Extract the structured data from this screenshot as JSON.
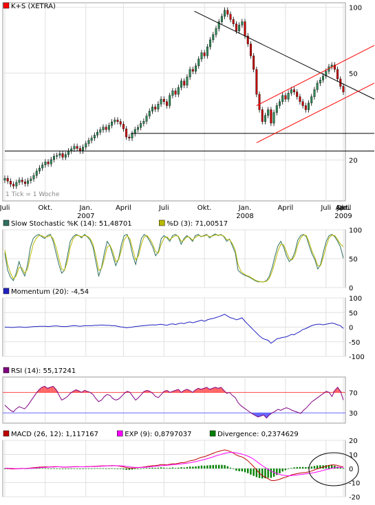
{
  "colors": {
    "background": "#ffffff",
    "panel_border": "#999999",
    "grid": "#e0e0e0",
    "candle_up": "#2e8b57",
    "candle_down": "#cc0000",
    "candle_wick": "#000000",
    "trend_black": "#000000",
    "trend_red": "#ff0000",
    "stoch_k": "#2f6f5f",
    "stoch_d": "#b8b800",
    "momentum": "#2020c0",
    "rsi_line": "#800080",
    "rsi_upper": "#ff4444",
    "rsi_lower": "#6666ff",
    "rsi_fill_over": "#ff6666",
    "rsi_fill_under": "#6666ff",
    "macd_line": "#c00000",
    "exp_line": "#ff00ff",
    "divergence": "#008000"
  },
  "chart_data": [
    {
      "type": "candlestick",
      "legend": {
        "label": "K+S (XETRA)",
        "color": "#ff0000"
      },
      "note": "1 Tick = 1 Woche",
      "y_scale": "log",
      "y_ticks": [
        20,
        50,
        100
      ],
      "ylim": [
        13,
        105
      ],
      "x_ticks": [
        "Juli",
        "Okt.",
        "Jan.",
        "April",
        "Juli",
        "Okt.",
        "Jan.",
        "April",
        "Juli",
        "Okt.",
        "Jan.",
        "April"
      ],
      "year_labels": [
        {
          "tick_index": 2,
          "label": "2007"
        },
        {
          "tick_index": 6,
          "label": "2008"
        },
        {
          "tick_index": 10,
          "label": "2009"
        }
      ],
      "close": [
        16.5,
        16.0,
        15.5,
        15.2,
        15.8,
        16.2,
        15.9,
        15.6,
        16.1,
        16.4,
        17.0,
        17.8,
        18.4,
        19.0,
        19.6,
        19.2,
        20.1,
        20.8,
        21.0,
        21.4,
        20.6,
        21.2,
        22.0,
        22.5,
        23.1,
        22.6,
        22.0,
        22.9,
        23.8,
        24.6,
        25.2,
        26.0,
        26.8,
        27.5,
        28.3,
        27.6,
        28.8,
        29.9,
        30.5,
        30.0,
        29.2,
        27.8,
        25.5,
        25.2,
        26.4,
        27.6,
        28.2,
        29.4,
        30.1,
        31.8,
        33.5,
        35.0,
        34.2,
        36.1,
        38.0,
        37.0,
        35.5,
        39.5,
        41.5,
        40.0,
        43.0,
        46.0,
        44.0,
        48.0,
        52.0,
        51.0,
        54.0,
        58.0,
        62.0,
        60.0,
        66.0,
        71.0,
        75.0,
        80.0,
        86.0,
        91.0,
        97.0,
        93.0,
        88.0,
        84.0,
        78.0,
        83.0,
        86.0,
        74.0,
        68.0,
        60.0,
        52.0,
        40.0,
        34.0,
        30.0,
        32.0,
        34.0,
        29.5,
        33.0,
        35.5,
        37.0,
        39.5,
        38.0,
        40.5,
        42.0,
        41.0,
        39.0,
        37.0,
        35.5,
        34.0,
        36.5,
        39.0,
        42.0,
        45.0,
        46.5,
        48.5,
        51.0,
        53.5,
        54.5,
        52.0,
        47.0,
        43.5,
        41.0
      ],
      "trendlines": {
        "black_resistance": {
          "from": [
            65.5,
            96
          ],
          "to": [
            121,
            38
          ]
        },
        "support_flat_1": {
          "from": [
            43.5,
            26.5
          ],
          "to": [
            121,
            26.5
          ]
        },
        "support_flat_2": {
          "from": [
            0,
            22.0
          ],
          "to": [
            121,
            22.0
          ]
        },
        "red_channel_upper": {
          "from": [
            87,
            35.5
          ],
          "to": [
            121,
            67
          ]
        },
        "red_channel_lower": {
          "from": [
            87,
            24.0
          ],
          "to": [
            121,
            45
          ]
        }
      }
    },
    {
      "type": "line",
      "legend": [
        {
          "label": "Slow Stochastic %K (14): 51,48701",
          "color": "#2f6f5f"
        },
        {
          "label": "%D (3): 71,00517",
          "color": "#b8b800"
        }
      ],
      "y_ticks": [
        0,
        50,
        100
      ],
      "ylim": [
        0,
        100
      ],
      "series": [
        {
          "name": "Slow Stochastic %K (14)",
          "values": [
            60,
            30,
            18,
            12,
            25,
            45,
            30,
            20,
            40,
            70,
            85,
            90,
            92,
            88,
            85,
            90,
            92,
            80,
            60,
            40,
            25,
            30,
            55,
            80,
            88,
            92,
            90,
            86,
            92,
            88,
            82,
            70,
            45,
            20,
            35,
            60,
            80,
            72,
            55,
            38,
            50,
            75,
            90,
            92,
            78,
            55,
            40,
            62,
            85,
            92,
            88,
            80,
            70,
            55,
            62,
            85,
            90,
            86,
            80,
            90,
            92,
            88,
            75,
            85,
            90,
            86,
            80,
            90,
            92,
            88,
            90,
            92,
            86,
            90,
            93,
            90,
            92,
            88,
            80,
            84,
            72,
            60,
            30,
            25,
            22,
            20,
            18,
            15,
            12,
            10,
            10,
            10,
            12,
            20,
            35,
            55,
            72,
            80,
            70,
            55,
            45,
            50,
            62,
            82,
            90,
            92,
            88,
            72,
            58,
            48,
            32,
            40,
            62,
            80,
            90,
            92,
            88,
            80,
            70,
            51
          ],
          "color": "#2f6f5f"
        },
        {
          "name": "%D (3)",
          "values": [
            65,
            40,
            25,
            15,
            20,
            35,
            34,
            25,
            32,
            55,
            75,
            85,
            90,
            90,
            87,
            88,
            90,
            85,
            70,
            50,
            32,
            30,
            45,
            70,
            84,
            90,
            90,
            88,
            90,
            89,
            85,
            75,
            55,
            30,
            33,
            50,
            70,
            73,
            62,
            45,
            48,
            65,
            83,
            90,
            84,
            65,
            48,
            55,
            75,
            88,
            90,
            84,
            75,
            62,
            60,
            75,
            86,
            88,
            83,
            87,
            90,
            89,
            80,
            82,
            88,
            87,
            82,
            87,
            90,
            89,
            89,
            91,
            88,
            89,
            91,
            91,
            91,
            89,
            83,
            83,
            76,
            65,
            40,
            28,
            24,
            21,
            19,
            16,
            13,
            11,
            10,
            10,
            11,
            16,
            28,
            45,
            63,
            75,
            74,
            62,
            50,
            48,
            56,
            74,
            86,
            91,
            90,
            78,
            63,
            52,
            38,
            38,
            53,
            72,
            86,
            91,
            90,
            83,
            75,
            71
          ],
          "color": "#b8b800"
        }
      ]
    },
    {
      "type": "line",
      "legend": [
        {
          "label": "Momentum (20): -4,54",
          "color": "#2020c0"
        }
      ],
      "y_ticks": [
        -100,
        -50,
        0,
        50,
        100
      ],
      "ylim": [
        -100,
        100
      ],
      "series": [
        {
          "name": "Momentum (20)",
          "values": [
            0,
            0,
            -1,
            -1,
            0,
            1,
            0,
            -1,
            0,
            1,
            2,
            2,
            3,
            3,
            3,
            2,
            3,
            4,
            4,
            3,
            2,
            2,
            3,
            4,
            5,
            4,
            3,
            4,
            5,
            5,
            5,
            6,
            6,
            7,
            7,
            6,
            6,
            5,
            5,
            3,
            1,
            0,
            -2,
            -1,
            0,
            2,
            3,
            4,
            5,
            6,
            7,
            8,
            7,
            9,
            10,
            8,
            6,
            10,
            11,
            9,
            12,
            14,
            12,
            16,
            18,
            15,
            18,
            21,
            24,
            20,
            25,
            28,
            30,
            33,
            36,
            40,
            44,
            38,
            32,
            30,
            25,
            28,
            32,
            20,
            10,
            0,
            -10,
            -20,
            -30,
            -38,
            -42,
            -45,
            -55,
            -48,
            -40,
            -38,
            -35,
            -34,
            -30,
            -25,
            -26,
            -20,
            -15,
            -8,
            -5,
            0,
            5,
            8,
            10,
            10,
            8,
            10,
            12,
            14,
            12,
            8,
            5,
            -4.54
          ],
          "color": "#2020c0"
        }
      ]
    },
    {
      "type": "line",
      "legend": [
        {
          "label": "RSI (14): 55,17241",
          "color": "#800080"
        }
      ],
      "y_ticks": [
        30,
        70
      ],
      "bands": [
        70,
        30
      ],
      "ylim": [
        10,
        100
      ],
      "series": [
        {
          "name": "RSI (14)",
          "values": [
            45,
            40,
            35,
            32,
            38,
            42,
            40,
            38,
            44,
            52,
            60,
            68,
            75,
            80,
            82,
            78,
            80,
            82,
            76,
            65,
            55,
            58,
            62,
            68,
            72,
            75,
            73,
            70,
            74,
            72,
            70,
            66,
            58,
            52,
            55,
            62,
            66,
            64,
            58,
            55,
            57,
            62,
            68,
            72,
            70,
            62,
            55,
            60,
            66,
            72,
            74,
            72,
            68,
            62,
            60,
            66,
            72,
            74,
            70,
            72,
            74,
            76,
            70,
            74,
            76,
            74,
            70,
            75,
            78,
            76,
            78,
            80,
            76,
            78,
            80,
            78,
            80,
            74,
            68,
            70,
            64,
            60,
            50,
            44,
            40,
            36,
            32,
            28,
            25,
            22,
            24,
            26,
            20,
            26,
            30,
            33,
            37,
            35,
            38,
            40,
            38,
            35,
            33,
            31,
            29,
            35,
            40,
            46,
            52,
            56,
            60,
            64,
            68,
            72,
            70,
            62,
            74,
            80,
            72,
            55.17
          ],
          "color": "#800080"
        }
      ]
    },
    {
      "type": "line",
      "legend": [
        {
          "label": "MACD (26, 12): 1,117167",
          "color": "#c00000"
        },
        {
          "label": "EXP (9): 0,8797037",
          "color": "#ff00ff"
        },
        {
          "label": "Divergence: 0,2374629",
          "color": "#008000"
        }
      ],
      "y_ticks": [
        -20,
        -10,
        0,
        10,
        20
      ],
      "ylim": [
        -20,
        20
      ],
      "series": [
        {
          "name": "MACD (26, 12)",
          "values": [
            0.2,
            0.1,
            -0.2,
            -0.3,
            -0.2,
            0.0,
            0.1,
            0.0,
            0.2,
            0.4,
            0.6,
            0.8,
            1.0,
            1.1,
            1.2,
            1.1,
            1.2,
            1.3,
            1.3,
            1.2,
            1.0,
            1.0,
            1.1,
            1.2,
            1.3,
            1.3,
            1.2,
            1.2,
            1.3,
            1.4,
            1.5,
            1.6,
            1.7,
            1.8,
            1.9,
            1.9,
            2.0,
            2.1,
            2.1,
            1.9,
            1.6,
            1.2,
            0.6,
            0.3,
            0.3,
            0.5,
            0.7,
            0.9,
            1.1,
            1.4,
            1.7,
            2.0,
            2.1,
            2.4,
            2.8,
            2.8,
            2.6,
            3.0,
            3.4,
            3.3,
            3.7,
            4.2,
            4.2,
            4.8,
            5.5,
            5.8,
            6.4,
            7.2,
            8.0,
            8.4,
            9.2,
            10.0,
            10.8,
            11.6,
            12.2,
            12.8,
            13.2,
            12.8,
            12.0,
            11.0,
            9.6,
            8.8,
            8.2,
            7.0,
            5.5,
            3.5,
            1.4,
            -1.0,
            -3.2,
            -5.0,
            -6.2,
            -7.2,
            -8.4,
            -8.6,
            -8.2,
            -7.6,
            -6.8,
            -6.2,
            -5.4,
            -4.6,
            -4.0,
            -3.6,
            -3.2,
            -3.0,
            -2.8,
            -2.4,
            -1.8,
            -1.0,
            -0.2,
            0.4,
            1.0,
            1.6,
            2.2,
            2.6,
            2.6,
            2.2,
            1.6,
            1.12
          ],
          "color": "#c00000"
        },
        {
          "name": "EXP (9)",
          "values": [
            0.2,
            0.2,
            0.1,
            0.0,
            -0.1,
            -0.1,
            0.0,
            0.0,
            0.1,
            0.2,
            0.3,
            0.5,
            0.6,
            0.8,
            0.9,
            1.0,
            1.1,
            1.1,
            1.2,
            1.2,
            1.1,
            1.1,
            1.1,
            1.1,
            1.2,
            1.2,
            1.2,
            1.2,
            1.2,
            1.3,
            1.4,
            1.4,
            1.5,
            1.6,
            1.7,
            1.8,
            1.9,
            1.9,
            2.0,
            2.0,
            1.9,
            1.8,
            1.5,
            1.2,
            1.0,
            0.8,
            0.8,
            0.8,
            0.9,
            1.0,
            1.2,
            1.4,
            1.6,
            1.8,
            2.0,
            2.2,
            2.3,
            2.5,
            2.7,
            2.9,
            3.1,
            3.3,
            3.5,
            3.8,
            4.1,
            4.5,
            4.9,
            5.4,
            5.9,
            6.4,
            7.0,
            7.6,
            8.3,
            9.0,
            9.6,
            10.2,
            10.8,
            11.2,
            11.4,
            11.4,
            11.1,
            10.7,
            10.2,
            9.6,
            8.8,
            7.8,
            6.6,
            5.1,
            3.5,
            2.0,
            0.7,
            -0.6,
            -1.8,
            -2.8,
            -3.6,
            -4.2,
            -4.7,
            -5.0,
            -5.1,
            -5.0,
            -4.8,
            -4.6,
            -4.3,
            -4.1,
            -3.8,
            -3.5,
            -3.2,
            -2.8,
            -2.4,
            -1.9,
            -1.3,
            -0.8,
            -0.3,
            0.2,
            0.6,
            0.9,
            0.9,
            0.88
          ],
          "color": "#ff00ff"
        }
      ]
    }
  ]
}
